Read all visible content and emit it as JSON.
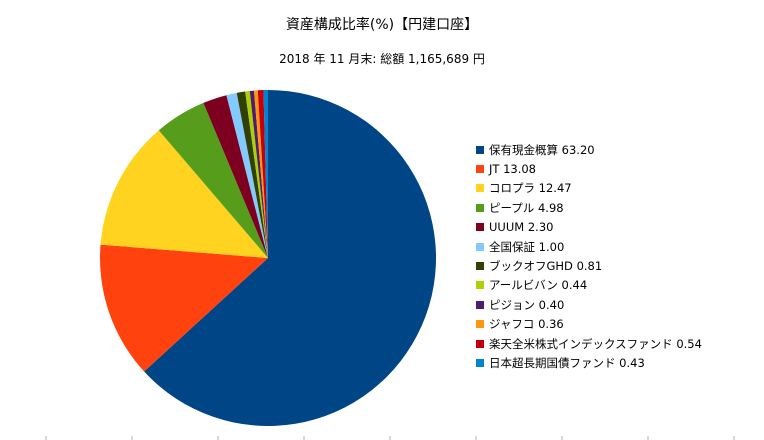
{
  "chart_data": {
    "type": "pie",
    "title": "資産構成比率(%)【円建口座】",
    "subtitle": "2018 年 11 月末: 総額 1,165,689 円",
    "legend_position": "right",
    "slices": [
      {
        "label": "保有現金概算",
        "value_text": "63.20",
        "value": 63.2,
        "color": "#004586"
      },
      {
        "label": "JT",
        "value_text": "13.08",
        "value": 13.08,
        "color": "#ff420e"
      },
      {
        "label": "コロプラ",
        "value_text": "12.47",
        "value": 12.47,
        "color": "#ffd320"
      },
      {
        "label": "ピープル",
        "value_text": "4.98",
        "value": 4.98,
        "color": "#579d1c"
      },
      {
        "label": "UUUM",
        "value_text": "2.30",
        "value": 2.3,
        "color": "#7e0021"
      },
      {
        "label": "全国保証",
        "value_text": "1.00",
        "value": 1.0,
        "color": "#83caff"
      },
      {
        "label": "ブックオフGHD",
        "value_text": "0.81",
        "value": 0.81,
        "color": "#314004"
      },
      {
        "label": "アールビバン",
        "value_text": "0.44",
        "value": 0.44,
        "color": "#aecf00"
      },
      {
        "label": "ピジョン",
        "value_text": "0.40",
        "value": 0.4,
        "color": "#4b1f6f"
      },
      {
        "label": "ジャフコ",
        "value_text": "0.36",
        "value": 0.36,
        "color": "#ff950e"
      },
      {
        "label": "楽天全米株式インデックスファンド",
        "value_text": "0.54",
        "value": 0.54,
        "color": "#c5000b"
      },
      {
        "label": "日本超長期国債ファンド",
        "value_text": "0.43",
        "value": 0.43,
        "color": "#0084d1"
      }
    ]
  }
}
